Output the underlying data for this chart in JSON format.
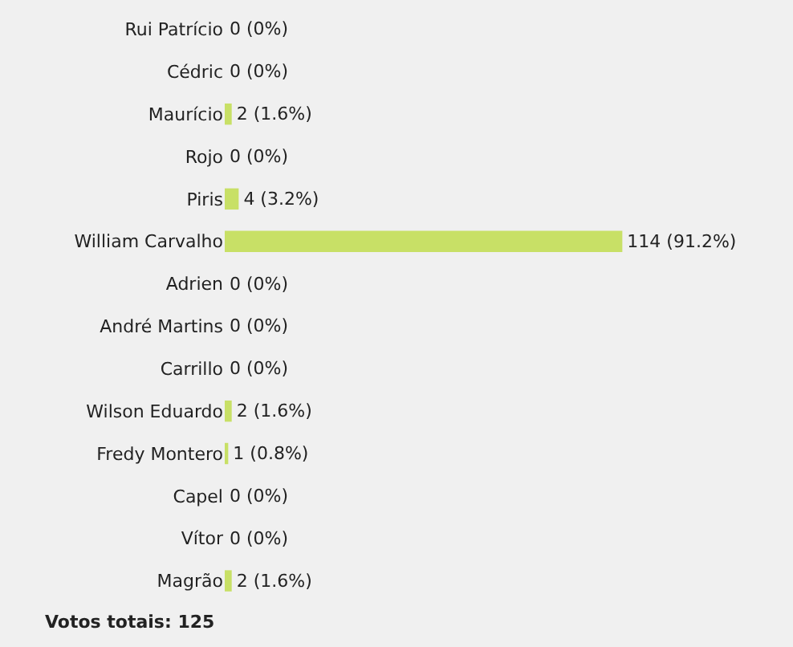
{
  "chart_data": {
    "type": "bar",
    "orientation": "horizontal",
    "categories": [
      "Rui Patrício",
      "Cédric",
      "Maurício",
      "Rojo",
      "Piris",
      "William Carvalho",
      "Adrien",
      "André Martins",
      "Carrillo",
      "Wilson Eduardo",
      "Fredy Montero",
      "Capel",
      "Vítor",
      "Magrão"
    ],
    "values": [
      0,
      0,
      2,
      0,
      4,
      114,
      0,
      0,
      0,
      2,
      1,
      0,
      0,
      2
    ],
    "value_labels": [
      "0 (0%)",
      "0 (0%)",
      "2 (1.6%)",
      "0 (0%)",
      "4 (3.2%)",
      "114 (91.2%)",
      "0 (0%)",
      "0 (0%)",
      "0 (0%)",
      "2 (1.6%)",
      "1 (0.8%)",
      "0 (0%)",
      "0 (0%)",
      "2 (1.6%)"
    ],
    "color": "#c8e066",
    "annotations": [
      "Votos totais: 125"
    ],
    "grid": false,
    "legend": false
  }
}
